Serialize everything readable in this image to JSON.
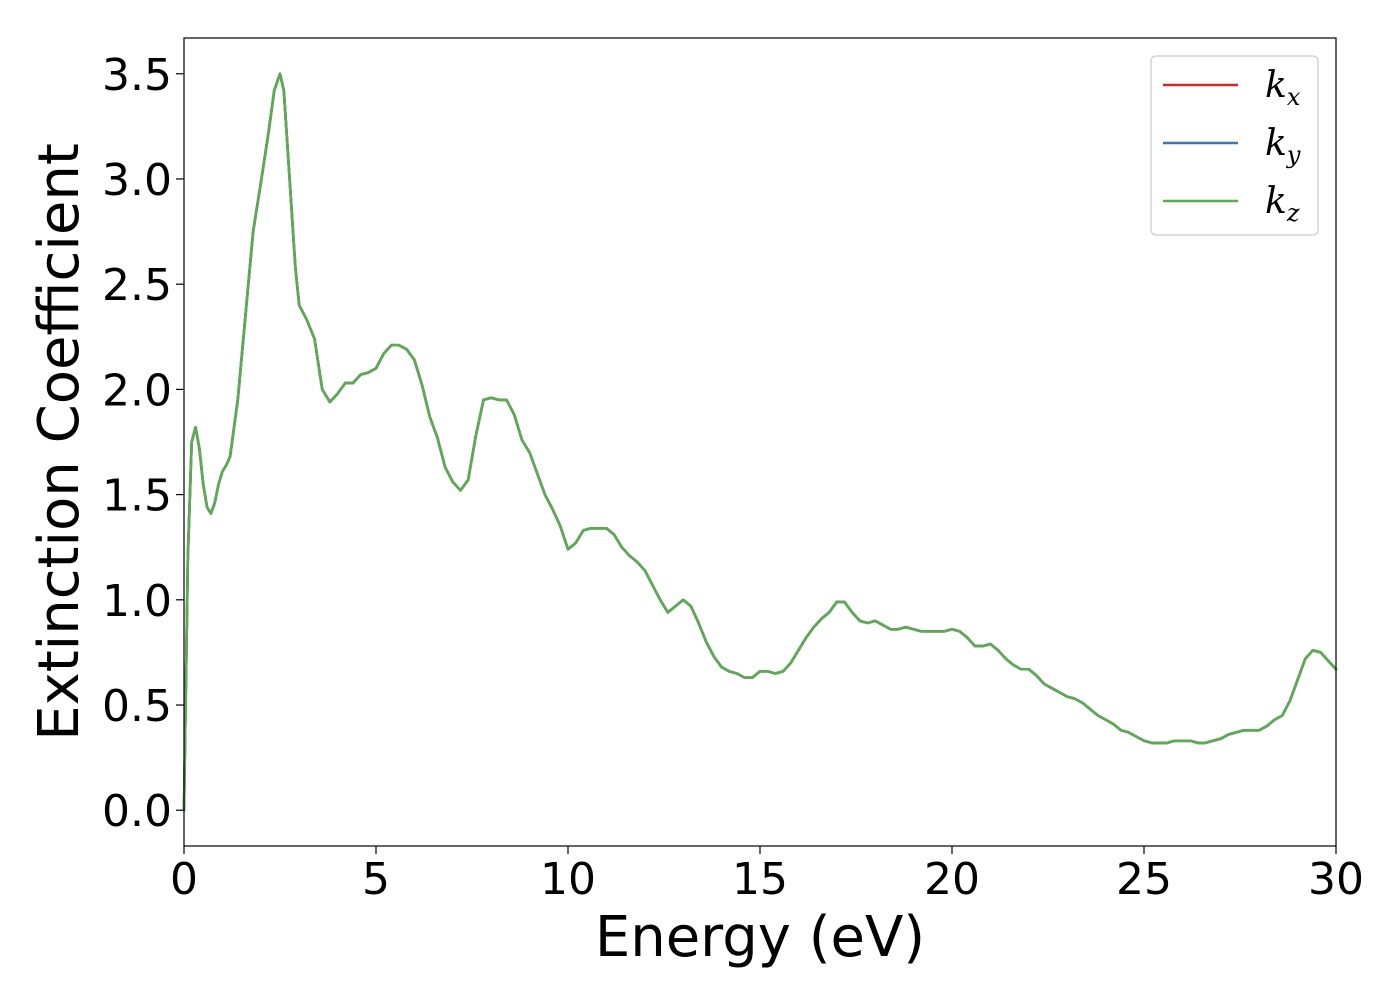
{
  "chart_data": {
    "type": "line",
    "title": "",
    "xlabel": "Energy (eV)",
    "ylabel": "Extinction Coefficient",
    "xlim": [
      0,
      30
    ],
    "ylim": [
      -0.17,
      3.67
    ],
    "xticks": [
      0,
      5,
      10,
      15,
      20,
      25,
      30
    ],
    "xtick_labels": [
      "0",
      "5",
      "10",
      "15",
      "20",
      "25",
      "30"
    ],
    "yticks": [
      0.0,
      0.5,
      1.0,
      1.5,
      2.0,
      2.5,
      3.0,
      3.5
    ],
    "ytick_labels": [
      "0.0",
      "0.5",
      "1.0",
      "1.5",
      "2.0",
      "2.5",
      "3.0",
      "3.5"
    ],
    "grid": false,
    "legend_position": "top-right",
    "series": [
      {
        "name": "k_x",
        "legend_base": "k",
        "legend_sub": "x",
        "color": "#d62728",
        "x": [
          0,
          0.1,
          0.2,
          0.3,
          0.4,
          0.5,
          0.6,
          0.7,
          0.8,
          0.9,
          1.0,
          1.1,
          1.2,
          1.4,
          1.6,
          1.8,
          2.0,
          2.2,
          2.35,
          2.5,
          2.6,
          2.75,
          2.9,
          3.0,
          3.2,
          3.4,
          3.6,
          3.8,
          4.0,
          4.2,
          4.4,
          4.6,
          4.8,
          5.0,
          5.2,
          5.4,
          5.6,
          5.8,
          6.0,
          6.2,
          6.4,
          6.6,
          6.8,
          7.0,
          7.2,
          7.4,
          7.6,
          7.8,
          8.0,
          8.2,
          8.4,
          8.6,
          8.8,
          9.0,
          9.2,
          9.4,
          9.6,
          9.8,
          10.0,
          10.2,
          10.4,
          10.6,
          10.8,
          11.0,
          11.2,
          11.4,
          11.6,
          11.8,
          12.0,
          12.2,
          12.4,
          12.6,
          12.8,
          13.0,
          13.2,
          13.4,
          13.6,
          13.8,
          14.0,
          14.2,
          14.4,
          14.6,
          14.8,
          15.0,
          15.2,
          15.4,
          15.6,
          15.8,
          16.0,
          16.2,
          16.4,
          16.6,
          16.8,
          17.0,
          17.2,
          17.4,
          17.6,
          17.8,
          18.0,
          18.2,
          18.4,
          18.6,
          18.8,
          19.0,
          19.2,
          19.4,
          19.6,
          19.8,
          20.0,
          20.2,
          20.4,
          20.6,
          20.8,
          21.0,
          21.2,
          21.4,
          21.6,
          21.8,
          22.0,
          22.2,
          22.4,
          22.6,
          22.8,
          23.0,
          23.2,
          23.4,
          23.6,
          23.8,
          24.0,
          24.2,
          24.4,
          24.6,
          24.8,
          25.0,
          25.2,
          25.4,
          25.6,
          25.8,
          26.0,
          26.2,
          26.4,
          26.6,
          26.8,
          27.0,
          27.2,
          27.4,
          27.6,
          27.8,
          28.0,
          28.2,
          28.4,
          28.6,
          28.8,
          29.0,
          29.2,
          29.4,
          29.6,
          29.8,
          30.0
        ],
        "y": [
          0.0,
          1.2,
          1.75,
          1.82,
          1.72,
          1.55,
          1.44,
          1.41,
          1.46,
          1.55,
          1.61,
          1.64,
          1.68,
          1.95,
          2.35,
          2.75,
          2.98,
          3.22,
          3.42,
          3.5,
          3.42,
          3.0,
          2.58,
          2.4,
          2.33,
          2.24,
          2.0,
          1.94,
          1.98,
          2.03,
          2.03,
          2.07,
          2.08,
          2.1,
          2.17,
          2.21,
          2.21,
          2.19,
          2.14,
          2.02,
          1.87,
          1.77,
          1.63,
          1.56,
          1.52,
          1.57,
          1.78,
          1.95,
          1.96,
          1.95,
          1.95,
          1.88,
          1.76,
          1.7,
          1.6,
          1.5,
          1.43,
          1.35,
          1.24,
          1.27,
          1.33,
          1.34,
          1.34,
          1.34,
          1.31,
          1.25,
          1.21,
          1.18,
          1.14,
          1.07,
          1.0,
          0.94,
          0.97,
          1.0,
          0.97,
          0.89,
          0.8,
          0.73,
          0.68,
          0.66,
          0.65,
          0.63,
          0.63,
          0.66,
          0.66,
          0.65,
          0.66,
          0.7,
          0.76,
          0.82,
          0.87,
          0.91,
          0.94,
          0.99,
          0.99,
          0.94,
          0.9,
          0.89,
          0.9,
          0.88,
          0.86,
          0.86,
          0.87,
          0.86,
          0.85,
          0.85,
          0.85,
          0.85,
          0.86,
          0.85,
          0.82,
          0.78,
          0.78,
          0.79,
          0.76,
          0.72,
          0.69,
          0.67,
          0.67,
          0.64,
          0.6,
          0.58,
          0.56,
          0.54,
          0.53,
          0.51,
          0.48,
          0.45,
          0.43,
          0.41,
          0.38,
          0.37,
          0.35,
          0.33,
          0.32,
          0.32,
          0.32,
          0.33,
          0.33,
          0.33,
          0.32,
          0.32,
          0.33,
          0.34,
          0.36,
          0.37,
          0.38,
          0.38,
          0.38,
          0.4,
          0.43,
          0.45,
          0.52,
          0.62,
          0.72,
          0.76,
          0.75,
          0.71,
          0.67
        ]
      },
      {
        "name": "k_y",
        "legend_base": "k",
        "legend_sub": "y",
        "color": "#3b75af",
        "x": [
          0,
          0.1,
          0.2,
          0.3,
          0.4,
          0.5,
          0.6,
          0.7,
          0.8,
          0.9,
          1.0,
          1.1,
          1.2,
          1.4,
          1.6,
          1.8,
          2.0,
          2.2,
          2.35,
          2.5,
          2.6,
          2.75,
          2.9,
          3.0,
          3.2,
          3.4,
          3.6,
          3.8,
          4.0,
          4.2,
          4.4,
          4.6,
          4.8,
          5.0,
          5.2,
          5.4,
          5.6,
          5.8,
          6.0,
          6.2,
          6.4,
          6.6,
          6.8,
          7.0,
          7.2,
          7.4,
          7.6,
          7.8,
          8.0,
          8.2,
          8.4,
          8.6,
          8.8,
          9.0,
          9.2,
          9.4,
          9.6,
          9.8,
          10.0,
          10.2,
          10.4,
          10.6,
          10.8,
          11.0,
          11.2,
          11.4,
          11.6,
          11.8,
          12.0,
          12.2,
          12.4,
          12.6,
          12.8,
          13.0,
          13.2,
          13.4,
          13.6,
          13.8,
          14.0,
          14.2,
          14.4,
          14.6,
          14.8,
          15.0,
          15.2,
          15.4,
          15.6,
          15.8,
          16.0,
          16.2,
          16.4,
          16.6,
          16.8,
          17.0,
          17.2,
          17.4,
          17.6,
          17.8,
          18.0,
          18.2,
          18.4,
          18.6,
          18.8,
          19.0,
          19.2,
          19.4,
          19.6,
          19.8,
          20.0,
          20.2,
          20.4,
          20.6,
          20.8,
          21.0,
          21.2,
          21.4,
          21.6,
          21.8,
          22.0,
          22.2,
          22.4,
          22.6,
          22.8,
          23.0,
          23.2,
          23.4,
          23.6,
          23.8,
          24.0,
          24.2,
          24.4,
          24.6,
          24.8,
          25.0,
          25.2,
          25.4,
          25.6,
          25.8,
          26.0,
          26.2,
          26.4,
          26.6,
          26.8,
          27.0,
          27.2,
          27.4,
          27.6,
          27.8,
          28.0,
          28.2,
          28.4,
          28.6,
          28.8,
          29.0,
          29.2,
          29.4,
          29.6,
          29.8,
          30.0
        ],
        "y": [
          0.0,
          1.2,
          1.75,
          1.82,
          1.72,
          1.55,
          1.44,
          1.41,
          1.46,
          1.55,
          1.61,
          1.64,
          1.68,
          1.95,
          2.35,
          2.75,
          2.98,
          3.22,
          3.42,
          3.5,
          3.42,
          3.0,
          2.58,
          2.4,
          2.33,
          2.24,
          2.0,
          1.94,
          1.98,
          2.03,
          2.03,
          2.07,
          2.08,
          2.1,
          2.17,
          2.21,
          2.21,
          2.19,
          2.14,
          2.02,
          1.87,
          1.77,
          1.63,
          1.56,
          1.52,
          1.57,
          1.78,
          1.95,
          1.96,
          1.95,
          1.95,
          1.88,
          1.76,
          1.7,
          1.6,
          1.5,
          1.43,
          1.35,
          1.24,
          1.27,
          1.33,
          1.34,
          1.34,
          1.34,
          1.31,
          1.25,
          1.21,
          1.18,
          1.14,
          1.07,
          1.0,
          0.94,
          0.97,
          1.0,
          0.97,
          0.89,
          0.8,
          0.73,
          0.68,
          0.66,
          0.65,
          0.63,
          0.63,
          0.66,
          0.66,
          0.65,
          0.66,
          0.7,
          0.76,
          0.82,
          0.87,
          0.91,
          0.94,
          0.99,
          0.99,
          0.94,
          0.9,
          0.89,
          0.9,
          0.88,
          0.86,
          0.86,
          0.87,
          0.86,
          0.85,
          0.85,
          0.85,
          0.85,
          0.86,
          0.85,
          0.82,
          0.78,
          0.78,
          0.79,
          0.76,
          0.72,
          0.69,
          0.67,
          0.67,
          0.64,
          0.6,
          0.58,
          0.56,
          0.54,
          0.53,
          0.51,
          0.48,
          0.45,
          0.43,
          0.41,
          0.38,
          0.37,
          0.35,
          0.33,
          0.32,
          0.32,
          0.32,
          0.33,
          0.33,
          0.33,
          0.32,
          0.32,
          0.33,
          0.34,
          0.36,
          0.37,
          0.38,
          0.38,
          0.38,
          0.4,
          0.43,
          0.45,
          0.52,
          0.62,
          0.72,
          0.76,
          0.75,
          0.71,
          0.67
        ]
      },
      {
        "name": "k_z",
        "legend_base": "k",
        "legend_sub": "z",
        "color": "#5aac50",
        "x": [
          0,
          0.1,
          0.2,
          0.3,
          0.4,
          0.5,
          0.6,
          0.7,
          0.8,
          0.9,
          1.0,
          1.1,
          1.2,
          1.4,
          1.6,
          1.8,
          2.0,
          2.2,
          2.35,
          2.5,
          2.6,
          2.75,
          2.9,
          3.0,
          3.2,
          3.4,
          3.6,
          3.8,
          4.0,
          4.2,
          4.4,
          4.6,
          4.8,
          5.0,
          5.2,
          5.4,
          5.6,
          5.8,
          6.0,
          6.2,
          6.4,
          6.6,
          6.8,
          7.0,
          7.2,
          7.4,
          7.6,
          7.8,
          8.0,
          8.2,
          8.4,
          8.6,
          8.8,
          9.0,
          9.2,
          9.4,
          9.6,
          9.8,
          10.0,
          10.2,
          10.4,
          10.6,
          10.8,
          11.0,
          11.2,
          11.4,
          11.6,
          11.8,
          12.0,
          12.2,
          12.4,
          12.6,
          12.8,
          13.0,
          13.2,
          13.4,
          13.6,
          13.8,
          14.0,
          14.2,
          14.4,
          14.6,
          14.8,
          15.0,
          15.2,
          15.4,
          15.6,
          15.8,
          16.0,
          16.2,
          16.4,
          16.6,
          16.8,
          17.0,
          17.2,
          17.4,
          17.6,
          17.8,
          18.0,
          18.2,
          18.4,
          18.6,
          18.8,
          19.0,
          19.2,
          19.4,
          19.6,
          19.8,
          20.0,
          20.2,
          20.4,
          20.6,
          20.8,
          21.0,
          21.2,
          21.4,
          21.6,
          21.8,
          22.0,
          22.2,
          22.4,
          22.6,
          22.8,
          23.0,
          23.2,
          23.4,
          23.6,
          23.8,
          24.0,
          24.2,
          24.4,
          24.6,
          24.8,
          25.0,
          25.2,
          25.4,
          25.6,
          25.8,
          26.0,
          26.2,
          26.4,
          26.6,
          26.8,
          27.0,
          27.2,
          27.4,
          27.6,
          27.8,
          28.0,
          28.2,
          28.4,
          28.6,
          28.8,
          29.0,
          29.2,
          29.4,
          29.6,
          29.8,
          30.0
        ],
        "y": [
          0.0,
          1.2,
          1.75,
          1.82,
          1.72,
          1.55,
          1.44,
          1.41,
          1.46,
          1.55,
          1.61,
          1.64,
          1.68,
          1.95,
          2.35,
          2.75,
          2.98,
          3.22,
          3.42,
          3.5,
          3.42,
          3.0,
          2.58,
          2.4,
          2.33,
          2.24,
          2.0,
          1.94,
          1.98,
          2.03,
          2.03,
          2.07,
          2.08,
          2.1,
          2.17,
          2.21,
          2.21,
          2.19,
          2.14,
          2.02,
          1.87,
          1.77,
          1.63,
          1.56,
          1.52,
          1.57,
          1.78,
          1.95,
          1.96,
          1.95,
          1.95,
          1.88,
          1.76,
          1.7,
          1.6,
          1.5,
          1.43,
          1.35,
          1.24,
          1.27,
          1.33,
          1.34,
          1.34,
          1.34,
          1.31,
          1.25,
          1.21,
          1.18,
          1.14,
          1.07,
          1.0,
          0.94,
          0.97,
          1.0,
          0.97,
          0.89,
          0.8,
          0.73,
          0.68,
          0.66,
          0.65,
          0.63,
          0.63,
          0.66,
          0.66,
          0.65,
          0.66,
          0.7,
          0.76,
          0.82,
          0.87,
          0.91,
          0.94,
          0.99,
          0.99,
          0.94,
          0.9,
          0.89,
          0.9,
          0.88,
          0.86,
          0.86,
          0.87,
          0.86,
          0.85,
          0.85,
          0.85,
          0.85,
          0.86,
          0.85,
          0.82,
          0.78,
          0.78,
          0.79,
          0.76,
          0.72,
          0.69,
          0.67,
          0.67,
          0.64,
          0.6,
          0.58,
          0.56,
          0.54,
          0.53,
          0.51,
          0.48,
          0.45,
          0.43,
          0.41,
          0.38,
          0.37,
          0.35,
          0.33,
          0.32,
          0.32,
          0.32,
          0.33,
          0.33,
          0.33,
          0.32,
          0.32,
          0.33,
          0.34,
          0.36,
          0.37,
          0.38,
          0.38,
          0.38,
          0.4,
          0.43,
          0.45,
          0.52,
          0.62,
          0.72,
          0.76,
          0.75,
          0.71,
          0.67
        ]
      }
    ]
  }
}
